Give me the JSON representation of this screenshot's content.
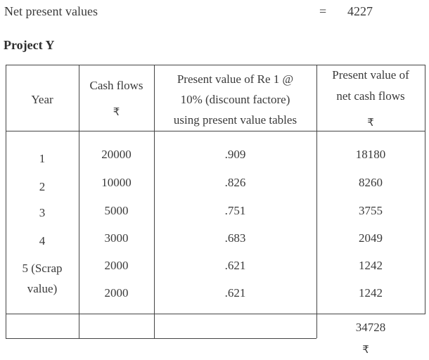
{
  "summary": {
    "label": "Net present values",
    "equals": "=",
    "value": "4227"
  },
  "project_title": "Project Y",
  "table": {
    "headers": {
      "year": "Year",
      "cash_flows": "Cash flows",
      "cash_flows_unit": "₹",
      "pv_factor_line1": "Present value of Re 1 @",
      "pv_factor_line2": "10% (discount factore)",
      "pv_factor_line3": "using present value tables",
      "pv_net_line1": "Present value of",
      "pv_net_line2": "net cash flows",
      "pv_net_unit": "₹"
    },
    "rows": [
      {
        "year": "1",
        "cash_flow": "20000",
        "factor": ".909",
        "pv": "18180"
      },
      {
        "year": "2",
        "cash_flow": "10000",
        "factor": ".826",
        "pv": "8260"
      },
      {
        "year": "3",
        "cash_flow": "5000",
        "factor": ".751",
        "pv": "3755"
      },
      {
        "year": "4",
        "cash_flow": "3000",
        "factor": ".683",
        "pv": "2049"
      },
      {
        "year": "5 (Scrap",
        "cash_flow": "2000",
        "factor": ".621",
        "pv": "1242"
      },
      {
        "year": "value)",
        "cash_flow": "2000",
        "factor": ".621",
        "pv": "1242"
      }
    ],
    "total": "34728",
    "total_unit": "₹"
  }
}
